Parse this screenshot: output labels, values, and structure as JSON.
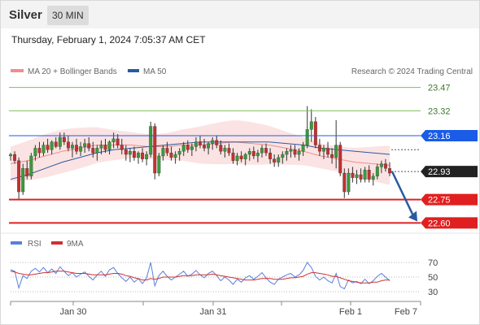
{
  "header": {
    "title": "Silver",
    "timeframe": "30 MIN"
  },
  "date_line": "Thursday, February 1, 2024 7:05:37 AM CET",
  "legend": {
    "bollinger": "MA 20 + Bollinger Bands",
    "ma50": "MA 50",
    "credit": "Research © 2024 Trading Central"
  },
  "rsi_legend": {
    "rsi": "RSI",
    "ma": "9MA"
  },
  "colors": {
    "bollinger": "#f28c8c",
    "ma50": "#2a5a9e",
    "up": "#3a9a3a",
    "down": "#c43030",
    "support": "#e02020",
    "resistance": "#7fc05f",
    "pivot": "#1a5ce6",
    "current": "#222222",
    "rsi": "#5a7fdc",
    "rsi_ma": "#d03030",
    "arrow": "#2a5a9e"
  },
  "chart_data": [
    {
      "type": "candlestick",
      "title": "",
      "x_ticks": [
        "Jan 30",
        "Jan 31",
        "Feb 1",
        "Feb 7"
      ],
      "ylim": [
        22.55,
        23.52
      ],
      "levels": [
        {
          "label": "23.47",
          "value": 23.47,
          "kind": "resistance"
        },
        {
          "label": "23.32",
          "value": 23.32,
          "kind": "resistance"
        },
        {
          "label": "23.16",
          "value": 23.16,
          "kind": "pivot"
        },
        {
          "label": "22.93",
          "value": 22.93,
          "kind": "current"
        },
        {
          "label": "22.75",
          "value": 22.75,
          "kind": "support"
        },
        {
          "label": "22.60",
          "value": 22.6,
          "kind": "support"
        }
      ],
      "series": [
        {
          "name": "MA 20 + Bollinger Bands",
          "values": [
            22.98,
            23.0,
            23.03,
            23.06,
            23.08,
            23.1,
            23.1,
            23.1,
            23.09,
            23.09,
            23.1,
            23.1,
            23.11,
            23.12,
            23.11,
            23.1,
            23.08,
            23.06,
            23.03,
            23.01,
            22.99,
            22.98,
            22.97
          ]
        },
        {
          "name": "MA 50",
          "values": [
            22.88,
            22.91,
            22.95,
            22.99,
            23.02,
            23.05,
            23.07,
            23.08,
            23.09,
            23.1,
            23.11,
            23.12,
            23.12,
            23.12,
            23.12,
            23.12,
            23.11,
            23.1,
            23.08,
            23.07,
            23.06,
            23.05,
            23.04
          ]
        }
      ],
      "candles": [
        [
          23.03,
          23.05,
          23.0,
          23.04
        ],
        [
          23.04,
          23.06,
          22.98,
          23.0
        ],
        [
          23.0,
          23.02,
          22.75,
          22.8
        ],
        [
          22.8,
          22.98,
          22.78,
          22.95
        ],
        [
          22.95,
          23.0,
          22.88,
          22.9
        ],
        [
          22.9,
          23.05,
          22.88,
          23.03
        ],
        [
          23.03,
          23.1,
          23.0,
          23.08
        ],
        [
          23.08,
          23.12,
          23.02,
          23.05
        ],
        [
          23.05,
          23.12,
          23.03,
          23.1
        ],
        [
          23.1,
          23.14,
          23.05,
          23.07
        ],
        [
          23.07,
          23.13,
          23.04,
          23.12
        ],
        [
          23.12,
          23.15,
          23.08,
          23.09
        ],
        [
          23.09,
          23.18,
          23.07,
          23.15
        ],
        [
          23.15,
          23.18,
          23.1,
          23.12
        ],
        [
          23.12,
          23.16,
          23.06,
          23.08
        ],
        [
          23.08,
          23.12,
          23.02,
          23.1
        ],
        [
          23.1,
          23.14,
          23.04,
          23.06
        ],
        [
          23.06,
          23.12,
          23.03,
          23.09
        ],
        [
          23.09,
          23.14,
          23.05,
          23.11
        ],
        [
          23.11,
          23.15,
          23.06,
          23.08
        ],
        [
          23.08,
          23.12,
          23.02,
          23.05
        ],
        [
          23.05,
          23.1,
          23.0,
          23.08
        ],
        [
          23.08,
          23.13,
          23.04,
          23.1
        ],
        [
          23.1,
          23.14,
          23.05,
          23.07
        ],
        [
          23.07,
          23.13,
          23.04,
          23.12
        ],
        [
          23.12,
          23.18,
          23.08,
          23.14
        ],
        [
          23.14,
          23.17,
          23.08,
          23.1
        ],
        [
          23.1,
          23.14,
          23.04,
          23.07
        ],
        [
          23.07,
          23.1,
          23.0,
          23.04
        ],
        [
          23.04,
          23.08,
          22.99,
          23.06
        ],
        [
          23.06,
          23.09,
          23.0,
          23.02
        ],
        [
          23.02,
          23.06,
          22.98,
          23.05
        ],
        [
          23.05,
          23.08,
          22.99,
          23.01
        ],
        [
          23.01,
          23.06,
          22.97,
          23.04
        ],
        [
          23.04,
          23.25,
          23.02,
          23.22
        ],
        [
          23.22,
          23.24,
          22.88,
          22.92
        ],
        [
          22.92,
          23.05,
          22.9,
          23.03
        ],
        [
          23.03,
          23.1,
          23.0,
          23.08
        ],
        [
          23.08,
          23.12,
          23.03,
          23.05
        ],
        [
          23.05,
          23.09,
          23.0,
          23.02
        ],
        [
          23.02,
          23.06,
          22.98,
          23.04
        ],
        [
          23.04,
          23.08,
          23.0,
          23.06
        ],
        [
          23.06,
          23.12,
          23.03,
          23.1
        ],
        [
          23.1,
          23.13,
          23.05,
          23.07
        ],
        [
          23.07,
          23.11,
          23.03,
          23.09
        ],
        [
          23.09,
          23.15,
          23.06,
          23.12
        ],
        [
          23.12,
          23.16,
          23.08,
          23.1
        ],
        [
          23.1,
          23.14,
          23.06,
          23.08
        ],
        [
          23.08,
          23.12,
          23.04,
          23.11
        ],
        [
          23.11,
          23.15,
          23.07,
          23.13
        ],
        [
          23.13,
          23.16,
          23.08,
          23.1
        ],
        [
          23.1,
          23.13,
          23.04,
          23.06
        ],
        [
          23.06,
          23.1,
          23.02,
          23.08
        ],
        [
          23.08,
          23.11,
          23.03,
          23.05
        ],
        [
          23.05,
          23.08,
          22.98,
          23.0
        ],
        [
          23.0,
          23.05,
          22.97,
          23.03
        ],
        [
          23.03,
          23.06,
          22.99,
          23.01
        ],
        [
          23.01,
          23.05,
          22.97,
          23.04
        ],
        [
          23.04,
          23.08,
          23.0,
          23.06
        ],
        [
          23.06,
          23.09,
          23.01,
          23.03
        ],
        [
          23.03,
          23.07,
          22.99,
          23.05
        ],
        [
          23.05,
          23.1,
          23.02,
          23.08
        ],
        [
          23.08,
          23.11,
          23.03,
          23.05
        ],
        [
          23.05,
          23.08,
          22.98,
          23.01
        ],
        [
          23.01,
          23.04,
          22.96,
          22.99
        ],
        [
          22.99,
          23.04,
          22.96,
          23.02
        ],
        [
          23.02,
          23.06,
          22.98,
          23.04
        ],
        [
          23.04,
          23.08,
          23.0,
          23.06
        ],
        [
          23.06,
          23.1,
          23.02,
          23.07
        ],
        [
          23.07,
          23.1,
          23.02,
          23.04
        ],
        [
          23.04,
          23.08,
          23.0,
          23.06
        ],
        [
          23.06,
          23.12,
          23.03,
          23.1
        ],
        [
          23.1,
          23.35,
          23.08,
          23.2
        ],
        [
          23.2,
          23.33,
          23.12,
          23.25
        ],
        [
          23.25,
          23.28,
          23.08,
          23.1
        ],
        [
          23.1,
          23.14,
          23.03,
          23.06
        ],
        [
          23.06,
          23.1,
          23.01,
          23.08
        ],
        [
          23.08,
          23.12,
          23.02,
          23.04
        ],
        [
          23.04,
          23.08,
          22.98,
          23.02
        ],
        [
          23.02,
          23.26,
          22.95,
          23.1
        ],
        [
          23.1,
          23.12,
          22.9,
          22.92
        ],
        [
          22.92,
          22.95,
          22.76,
          22.8
        ],
        [
          22.8,
          22.95,
          22.78,
          22.92
        ],
        [
          22.92,
          22.96,
          22.86,
          22.89
        ],
        [
          22.89,
          22.94,
          22.85,
          22.91
        ],
        [
          22.91,
          22.95,
          22.86,
          22.88
        ],
        [
          22.88,
          22.96,
          22.86,
          22.94
        ],
        [
          22.94,
          22.97,
          22.86,
          22.88
        ],
        [
          22.88,
          22.92,
          22.84,
          22.9
        ],
        [
          22.9,
          22.98,
          22.88,
          22.96
        ],
        [
          22.96,
          23.0,
          22.92,
          22.98
        ],
        [
          22.98,
          23.01,
          22.93,
          22.95
        ],
        [
          22.95,
          22.99,
          22.9,
          22.92
        ]
      ]
    },
    {
      "type": "line",
      "title": "",
      "y_ticks": [
        70,
        50,
        30
      ],
      "ylim": [
        20,
        80
      ],
      "series": [
        {
          "name": "RSI",
          "values": [
            60,
            58,
            35,
            52,
            48,
            58,
            62,
            57,
            63,
            56,
            61,
            55,
            64,
            58,
            52,
            56,
            50,
            54,
            57,
            51,
            46,
            53,
            58,
            51,
            60,
            63,
            55,
            49,
            44,
            50,
            43,
            48,
            41,
            49,
            70,
            38,
            52,
            58,
            51,
            46,
            50,
            54,
            58,
            51,
            54,
            59,
            53,
            49,
            55,
            58,
            52,
            45,
            50,
            46,
            40,
            47,
            43,
            49,
            52,
            47,
            51,
            56,
            49,
            43,
            40,
            47,
            50,
            53,
            55,
            50,
            53,
            59,
            70,
            63,
            51,
            46,
            50,
            45,
            42,
            55,
            37,
            34,
            46,
            42,
            44,
            41,
            47,
            41,
            45,
            51,
            55,
            50,
            45
          ]
        },
        {
          "name": "9MA",
          "values": [
            58,
            57,
            55,
            54,
            53,
            53,
            54,
            55,
            56,
            56,
            57,
            58,
            58,
            58,
            57,
            56,
            55,
            55,
            55,
            54,
            53,
            53,
            53,
            53,
            54,
            55,
            55,
            54,
            52,
            51,
            49,
            48,
            46,
            46,
            48,
            47,
            48,
            50,
            50,
            50,
            50,
            51,
            52,
            52,
            52,
            53,
            53,
            53,
            53,
            54,
            53,
            52,
            51,
            50,
            49,
            48,
            47,
            46,
            46,
            46,
            47,
            48,
            48,
            48,
            47,
            47,
            47,
            48,
            49,
            49,
            50,
            51,
            54,
            56,
            56,
            55,
            54,
            53,
            51,
            51,
            49,
            47,
            45,
            44,
            43,
            42,
            42,
            42,
            43,
            43,
            45,
            46,
            46
          ]
        }
      ]
    }
  ]
}
